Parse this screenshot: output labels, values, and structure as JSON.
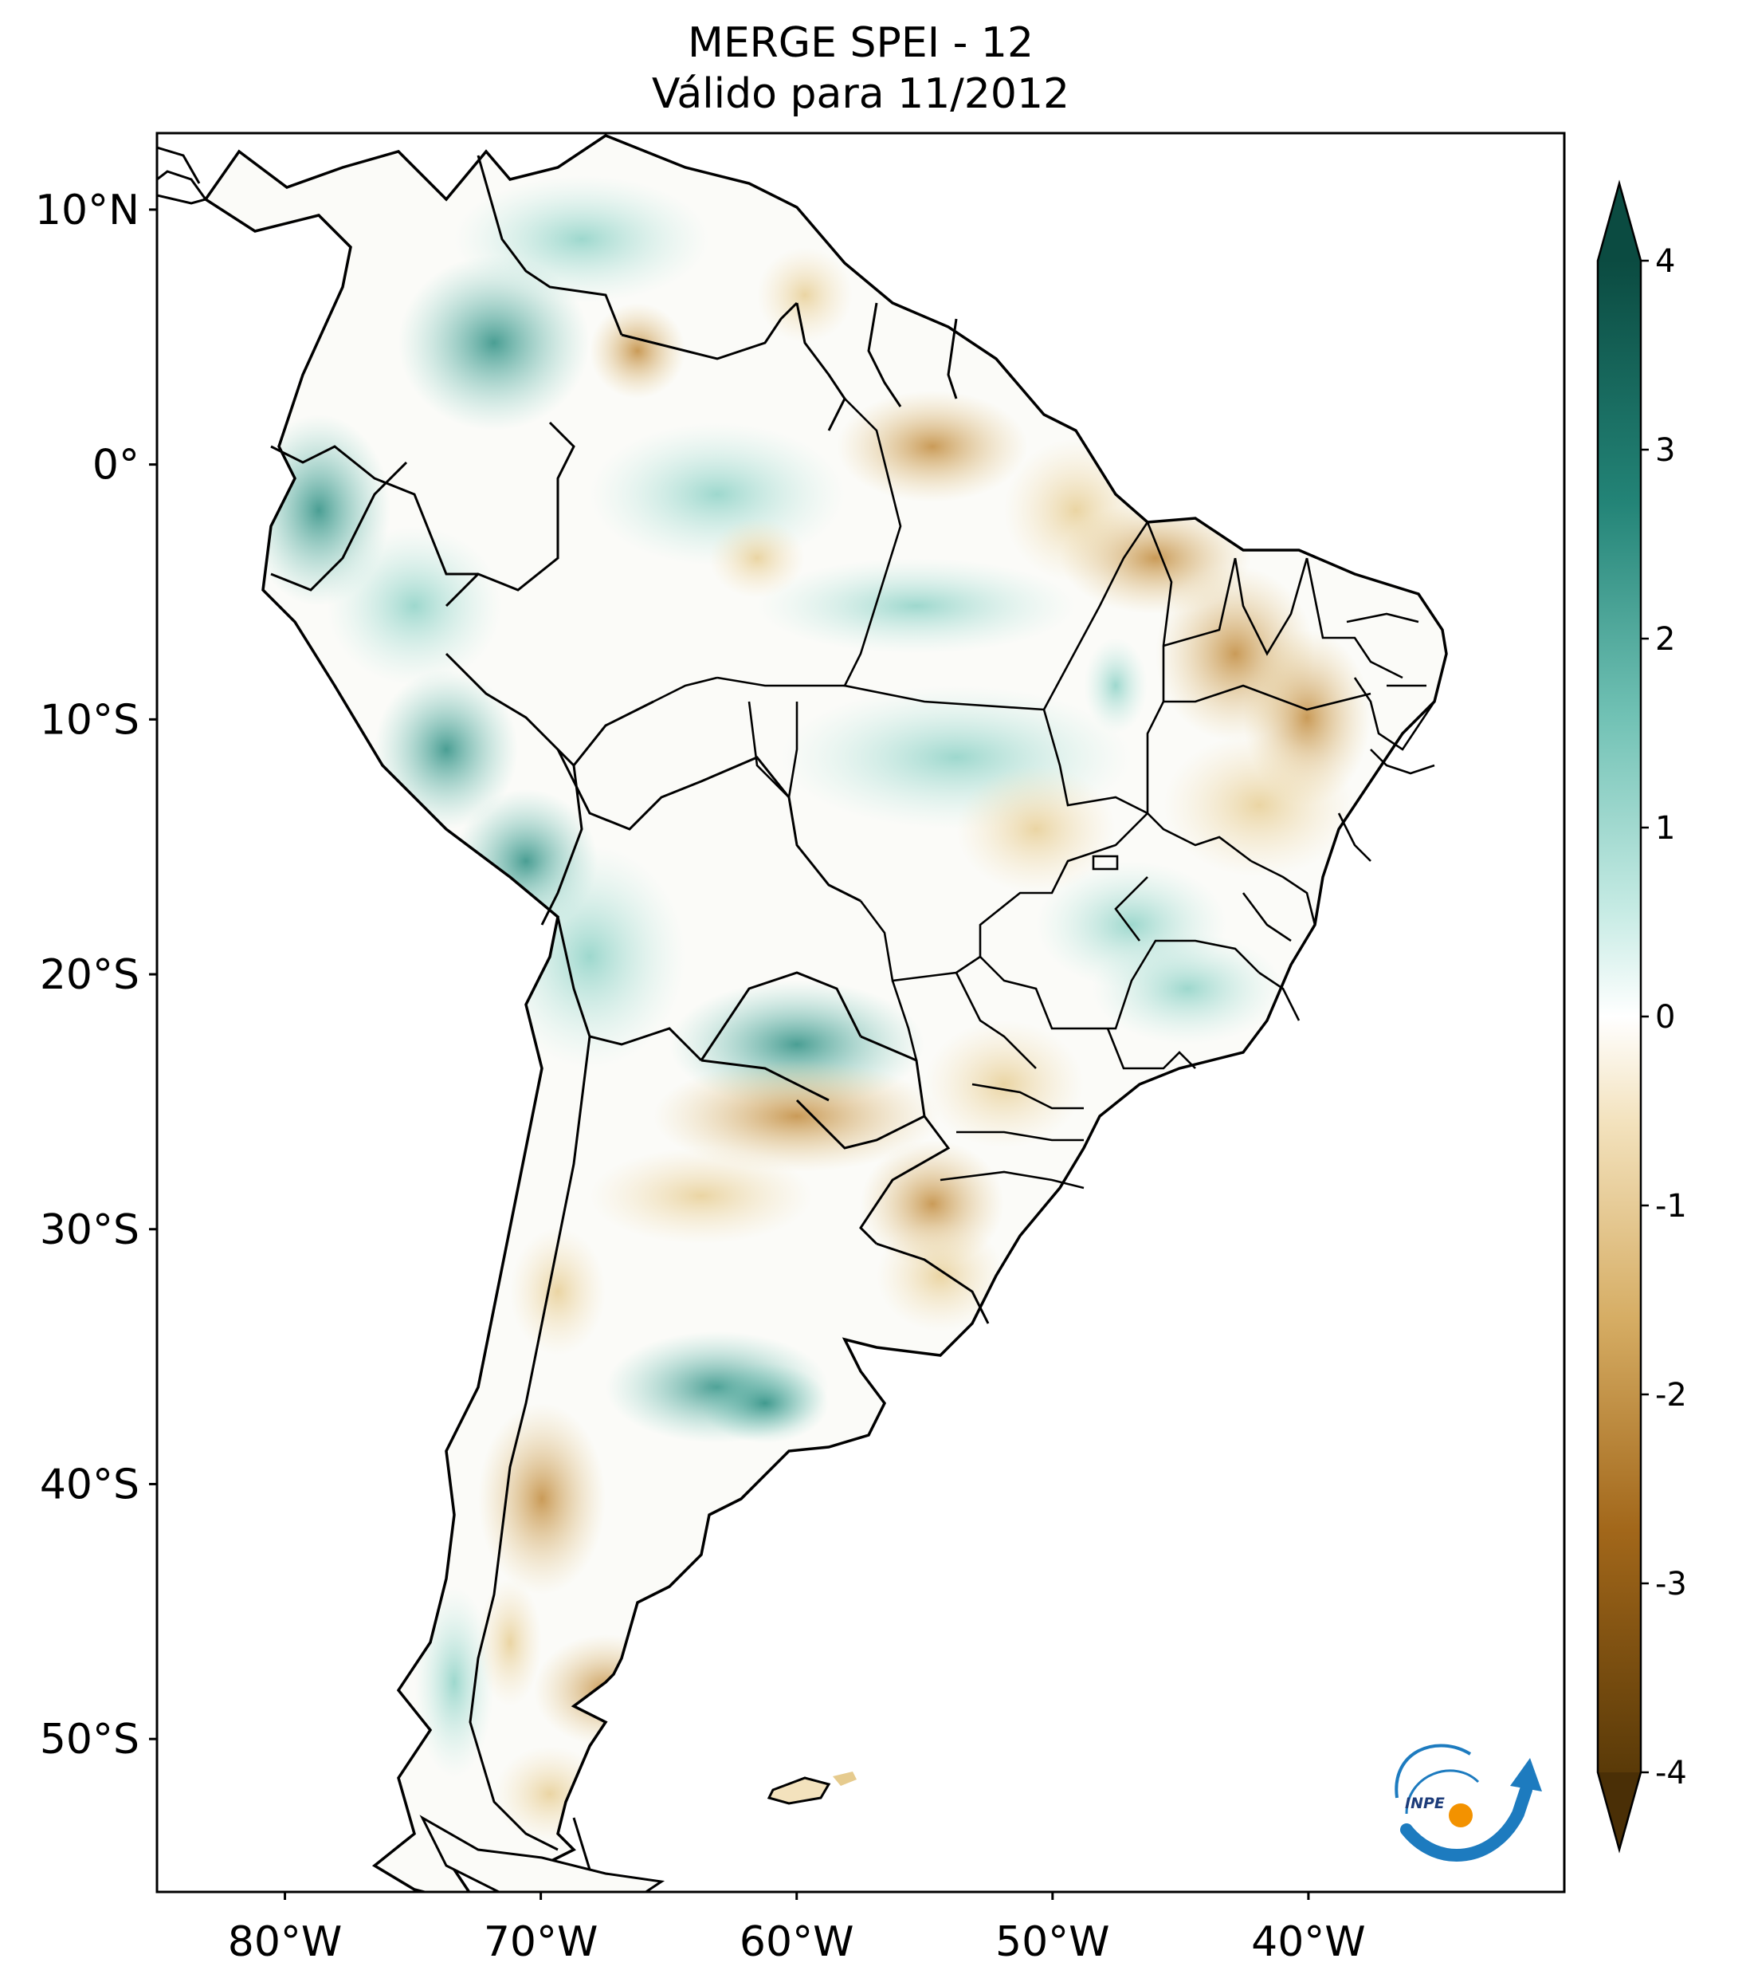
{
  "title": {
    "line1": "MERGE   SPEI - 12",
    "line2": "Válido para 11/2012"
  },
  "map": {
    "lon_range": [
      -85,
      -30
    ],
    "lat_range": [
      -56,
      13
    ],
    "lat_ticks": [
      {
        "value": 10,
        "label": "10°N"
      },
      {
        "value": 0,
        "label": "0°"
      },
      {
        "value": -10,
        "label": "10°S"
      },
      {
        "value": -20,
        "label": "20°S"
      },
      {
        "value": -30,
        "label": "30°S"
      },
      {
        "value": -40,
        "label": "40°S"
      },
      {
        "value": -50,
        "label": "50°S"
      }
    ],
    "lon_ticks": [
      {
        "value": -80,
        "label": "80°W"
      },
      {
        "value": -70,
        "label": "70°W"
      },
      {
        "value": -60,
        "label": "60°W"
      },
      {
        "value": -50,
        "label": "50°W"
      },
      {
        "value": -40,
        "label": "40°W"
      }
    ]
  },
  "colorbar": {
    "range": [
      -4,
      4
    ],
    "ticks": [
      {
        "value": 4,
        "label": "4"
      },
      {
        "value": 3,
        "label": "3"
      },
      {
        "value": 2,
        "label": "2"
      },
      {
        "value": 1,
        "label": "1"
      },
      {
        "value": 0,
        "label": "0"
      },
      {
        "value": -1,
        "label": "-1"
      },
      {
        "value": -2,
        "label": "-2"
      },
      {
        "value": -3,
        "label": "-3"
      },
      {
        "value": -4,
        "label": "-4"
      }
    ],
    "colors": {
      "wet_max": "#0b4b41",
      "wet_high": "#2b8e82",
      "wet_mid": "#86cfc3",
      "neutral": "#ffffff",
      "dry_mid": "#e6cb8e",
      "dry_high": "#b77b2a",
      "dry_max": "#5a3a08"
    }
  },
  "logo": {
    "text": "INPE"
  }
}
